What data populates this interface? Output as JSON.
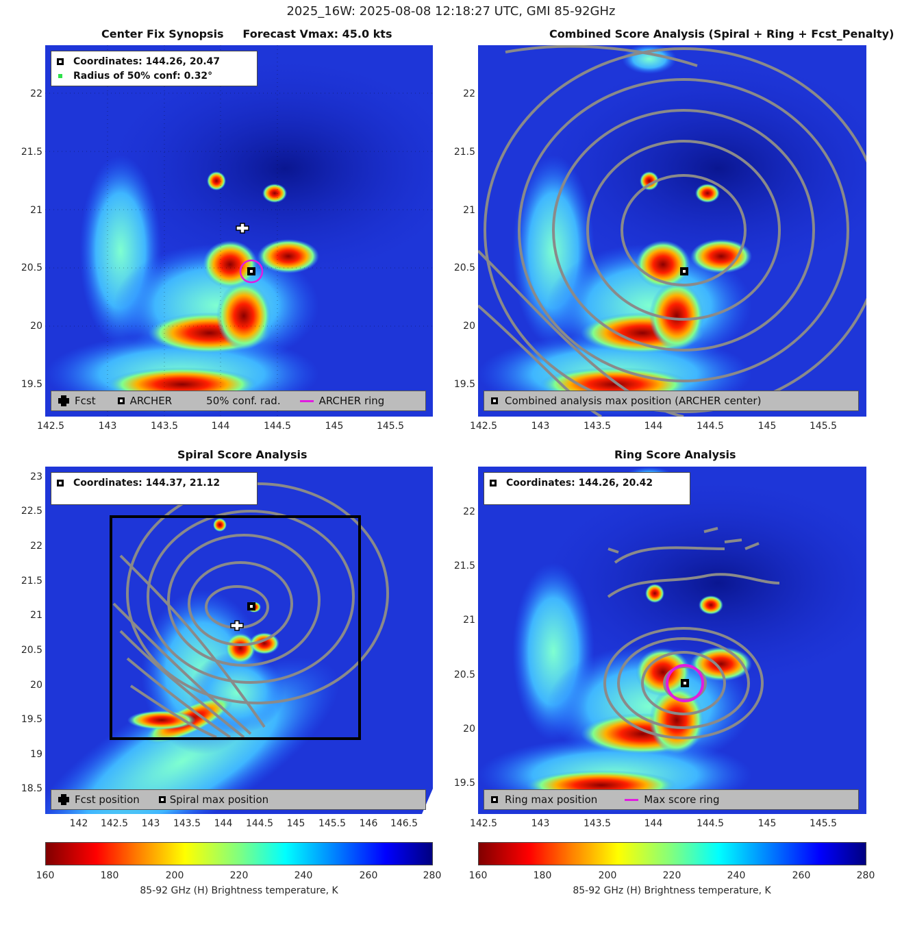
{
  "figure_title": "2025_16W: 2025-08-08 12:18:27 UTC, GMI 85-92GHz",
  "colors": {
    "accent_ring": "#e01ce0",
    "contour": "#8a8a8a",
    "legend_bg": "#bcbcbc",
    "conf_dot": "#2ee04a"
  },
  "panels": {
    "tl": {
      "title": "Center Fix Synopsis     Forecast Vmax: 45.0 kts",
      "info": [
        "Coordinates: 144.26, 20.47",
        "Radius of 50% conf: 0.32°"
      ],
      "legend": [
        "Fcst",
        "ARCHER",
        "50% conf. rad.",
        "ARCHER ring"
      ],
      "xticks": [
        "142.5",
        "143",
        "143.5",
        "144",
        "144.5",
        "145",
        "145.5"
      ],
      "yticks": [
        "22",
        "21.5",
        "21",
        "20.5",
        "20",
        "19.5"
      ]
    },
    "tr": {
      "title": "Combined Score Analysis (Spiral + Ring + Fcst_Penalty)",
      "legend": [
        "Combined analysis max position (ARCHER center)"
      ],
      "xticks": [
        "142.5",
        "143",
        "143.5",
        "144",
        "144.5",
        "145",
        "145.5"
      ],
      "yticks": [
        "22",
        "21.5",
        "21",
        "20.5",
        "20",
        "19.5"
      ]
    },
    "bl": {
      "title": "Spiral Score Analysis",
      "info": [
        "Coordinates: 144.37, 21.12"
      ],
      "legend": [
        "Fcst position",
        "Spiral max position"
      ],
      "xticks": [
        "142",
        "142.5",
        "143",
        "143.5",
        "144",
        "144.5",
        "145",
        "145.5",
        "146",
        "146.5"
      ],
      "yticks": [
        "23",
        "22.5",
        "22",
        "21.5",
        "21",
        "20.5",
        "20",
        "19.5",
        "19",
        "18.5"
      ]
    },
    "br": {
      "title": "Ring Score Analysis",
      "info": [
        "Coordinates: 144.26, 20.42"
      ],
      "legend": [
        "Ring max position",
        "Max score ring"
      ],
      "xticks": [
        "142.5",
        "143",
        "143.5",
        "144",
        "144.5",
        "145",
        "145.5"
      ],
      "yticks": [
        "22",
        "21.5",
        "21",
        "20.5",
        "20",
        "19.5"
      ]
    }
  },
  "colorbar": {
    "ticks": [
      "160",
      "180",
      "200",
      "220",
      "240",
      "260",
      "280"
    ],
    "label": "85-92 GHz (H) Brightness temperature, K"
  },
  "chart_data": [
    {
      "type": "heatmap",
      "title": "Center Fix Synopsis",
      "subtitle": "Forecast Vmax: 45.0 kts",
      "xlim": [
        142.45,
        145.85
      ],
      "ylim": [
        19.2,
        22.4
      ],
      "forecast_position": [
        144.15,
        20.82
      ],
      "archer_center": [
        144.26,
        20.47
      ],
      "conf_radius_deg": 0.32,
      "cold_cores_K": [
        {
          "lon": 144.05,
          "lat": 20.55,
          "tb": 165
        },
        {
          "lon": 144.5,
          "lat": 20.62,
          "tb": 165
        },
        {
          "lon": 144.15,
          "lat": 20.12,
          "tb": 170
        }
      ]
    },
    {
      "type": "heatmap",
      "title": "Combined Score Analysis (Spiral + Ring + Fcst_Penalty)",
      "xlim": [
        142.45,
        145.85
      ],
      "ylim": [
        19.2,
        22.4
      ],
      "max_position": [
        144.26,
        20.47
      ]
    },
    {
      "type": "heatmap",
      "title": "Spiral Score Analysis",
      "xlim": [
        141.55,
        146.9
      ],
      "ylim": [
        18.2,
        23.2
      ],
      "max_position": [
        144.37,
        21.12
      ],
      "forecast_position": [
        144.15,
        20.82
      ],
      "search_box": {
        "lon": [
          142.45,
          145.85
        ],
        "lat": [
          19.22,
          22.45
        ]
      }
    },
    {
      "type": "heatmap",
      "title": "Ring Score Analysis",
      "xlim": [
        142.45,
        145.85
      ],
      "ylim": [
        19.2,
        22.4
      ],
      "max_position": [
        144.26,
        20.42
      ],
      "ring_radius_deg": 0.15
    },
    {
      "type": "colorbar",
      "label": "85-92 GHz (H) Brightness temperature, K",
      "range": [
        160,
        280
      ],
      "ticks": [
        160,
        180,
        200,
        220,
        240,
        260,
        280
      ]
    }
  ]
}
